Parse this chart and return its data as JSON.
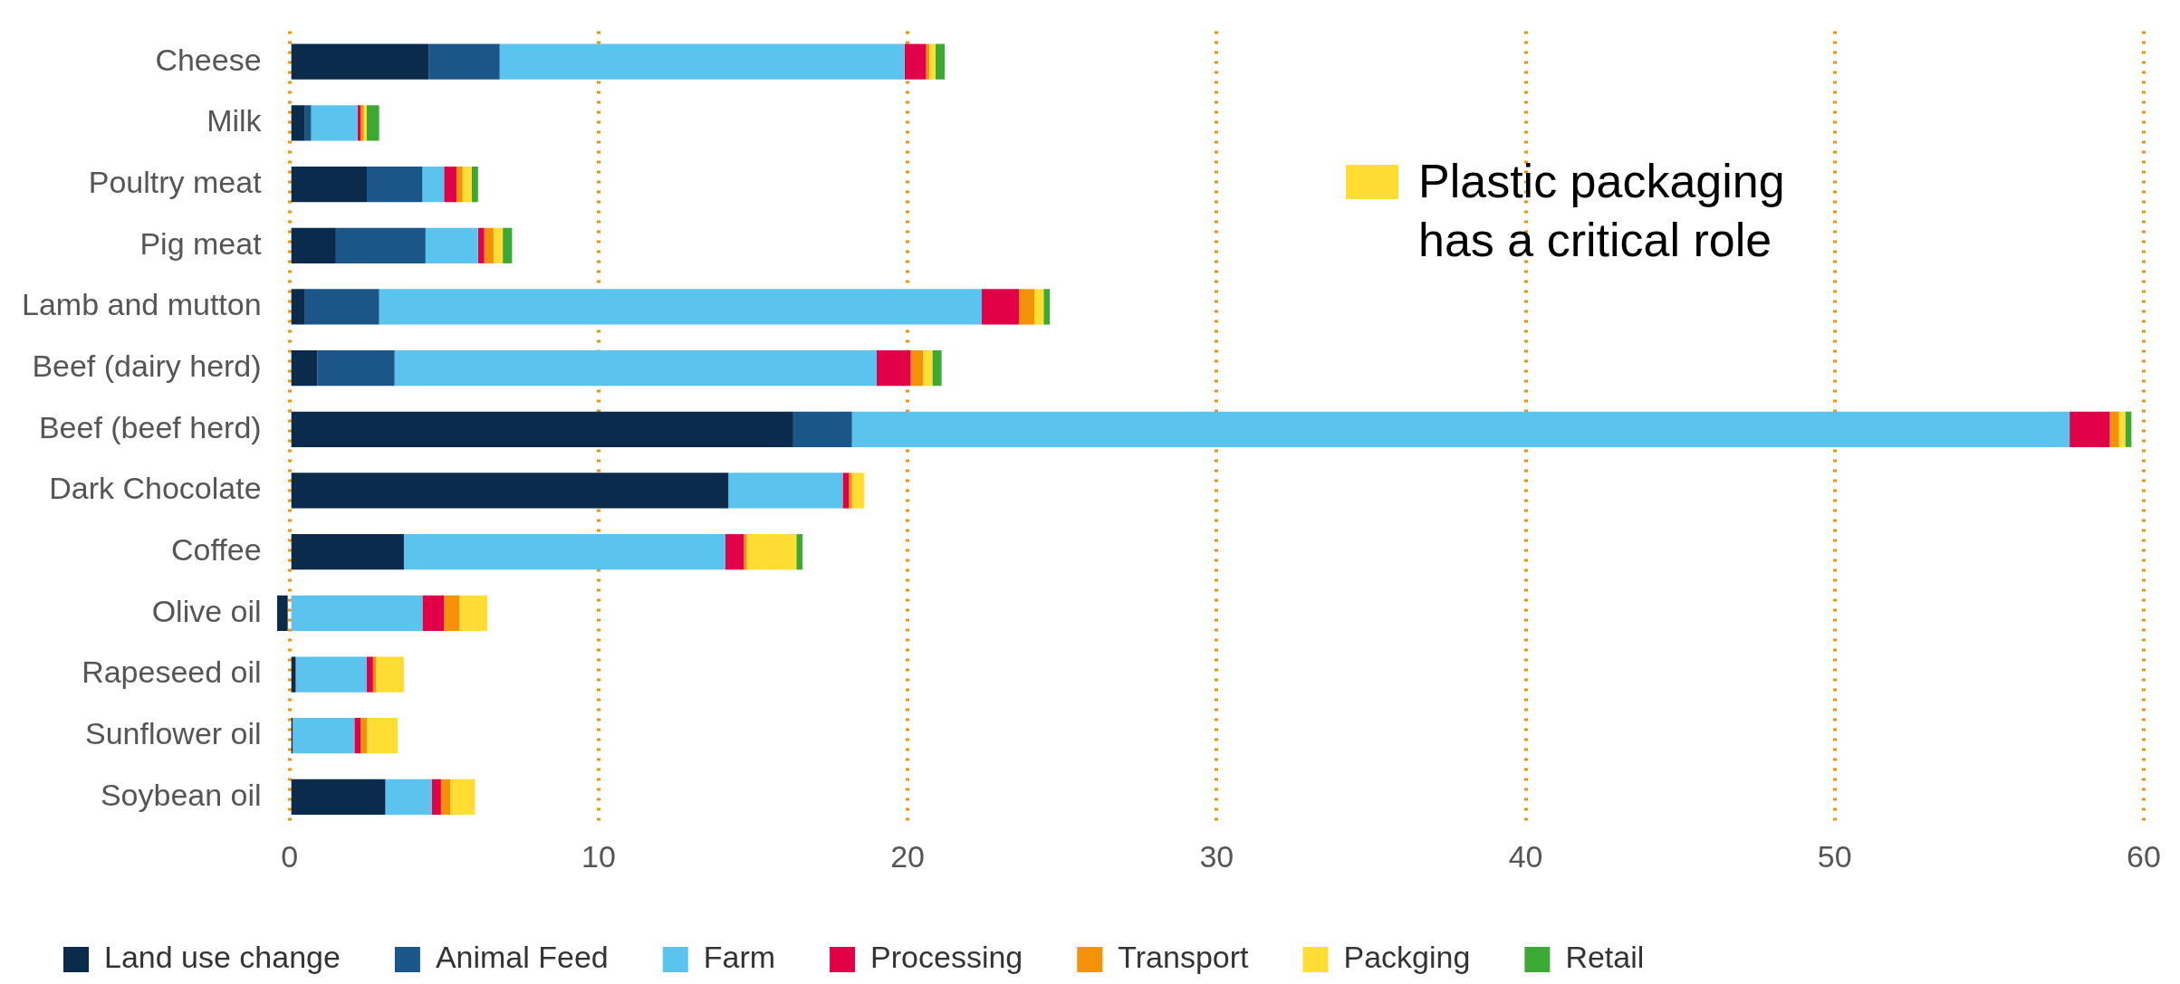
{
  "chart_data": {
    "type": "bar",
    "orientation": "horizontal",
    "stacked": true,
    "categories": [
      "Cheese",
      "Milk",
      "Poultry meat",
      "Pig meat",
      "Lamb and mutton",
      "Beef (dairy herd)",
      "Beef (beef herd)",
      "Dark Chocolate",
      "Coffee",
      "Olive oil",
      "Rapeseed oil",
      "Sunflower oil",
      "Soybean oil"
    ],
    "series": [
      {
        "name": "Land use change",
        "color": "#0a2b4c",
        "values": [
          4.5,
          0.5,
          2.5,
          1.5,
          0.5,
          0.9,
          16.3,
          14.2,
          3.7,
          -0.4,
          0.2,
          0.1,
          3.1
        ]
      },
      {
        "name": "Animal Feed",
        "color": "#1b5689",
        "values": [
          2.3,
          0.2,
          1.8,
          2.9,
          2.4,
          2.5,
          1.9,
          0,
          0,
          0,
          0,
          0,
          0
        ]
      },
      {
        "name": "Farm",
        "color": "#5bc4ee",
        "values": [
          13.1,
          1.5,
          0.7,
          1.7,
          19.5,
          15.6,
          39.4,
          3.7,
          10.4,
          4.3,
          2.3,
          2.0,
          1.5
        ]
      },
      {
        "name": "Processing",
        "color": "#e10047",
        "values": [
          0.7,
          0.1,
          0.4,
          0.2,
          1.2,
          1.1,
          1.3,
          0.2,
          0.6,
          0.7,
          0.2,
          0.2,
          0.3
        ]
      },
      {
        "name": "Transport",
        "color": "#f39208",
        "values": [
          0.1,
          0.1,
          0.2,
          0.3,
          0.5,
          0.4,
          0.3,
          0.1,
          0.1,
          0.5,
          0.1,
          0.2,
          0.3
        ]
      },
      {
        "name": "Packging",
        "color": "#ffdd33",
        "values": [
          0.2,
          0.1,
          0.3,
          0.3,
          0.3,
          0.3,
          0.2,
          0.4,
          1.6,
          0.9,
          0.9,
          1.0,
          0.8
        ]
      },
      {
        "name": "Retail",
        "color": "#3aaa35",
        "values": [
          0.3,
          0.4,
          0.2,
          0.3,
          0.2,
          0.3,
          0.2,
          0,
          0.2,
          0,
          0,
          0,
          0
        ]
      }
    ],
    "xlim": [
      -0.5,
      60
    ],
    "xticks": [
      0,
      10,
      20,
      30,
      40,
      50,
      60
    ],
    "grid": "x",
    "legend": "bottom",
    "annotations": [
      "Plastic packaging has a critical role"
    ]
  }
}
